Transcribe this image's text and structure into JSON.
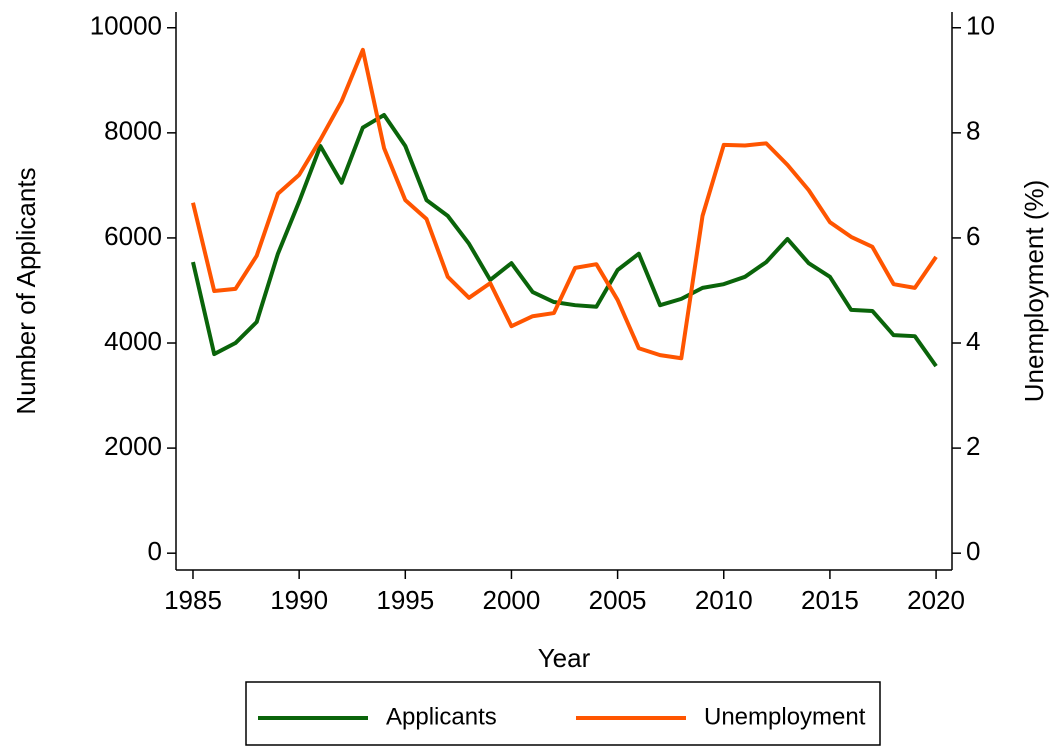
{
  "chart_data": {
    "type": "line",
    "xlabel": "Year",
    "ylabel": "Number of Applicants",
    "y2label": "Unemployment (%)",
    "x": [
      1985,
      1986,
      1987,
      1988,
      1989,
      1990,
      1991,
      1992,
      1993,
      1994,
      1995,
      1996,
      1997,
      1998,
      1999,
      2000,
      2001,
      2002,
      2003,
      2004,
      2005,
      2006,
      2007,
      2008,
      2009,
      2010,
      2011,
      2012,
      2013,
      2014,
      2015,
      2016,
      2017,
      2018,
      2019,
      2020
    ],
    "series": [
      {
        "name": "Applicants",
        "color": "#0a640a",
        "axis": "y",
        "values": [
          5540,
          3790,
          4000,
          4400,
          5700,
          6690,
          7750,
          7050,
          8100,
          8340,
          7750,
          6720,
          6420,
          5890,
          5200,
          5520,
          4970,
          4780,
          4720,
          4690,
          5390,
          5700,
          4720,
          4840,
          5050,
          5120,
          5260,
          5540,
          5980,
          5520,
          5260,
          4630,
          4610,
          4150,
          4130,
          3560
        ]
      },
      {
        "name": "Unemployment",
        "color": "#ff5500",
        "axis": "y2",
        "values": [
          6.67,
          4.99,
          5.03,
          5.66,
          6.84,
          7.2,
          7.87,
          8.6,
          9.58,
          7.71,
          6.72,
          6.36,
          5.26,
          4.86,
          5.14,
          4.32,
          4.51,
          4.57,
          5.43,
          5.5,
          4.82,
          3.9,
          3.77,
          3.71,
          6.42,
          7.77,
          7.76,
          7.8,
          7.39,
          6.91,
          6.3,
          6.02,
          5.83,
          5.12,
          5.05,
          5.64
        ]
      }
    ],
    "xlim": [
      1984.2,
      2020.75
    ],
    "xticks": [
      1985,
      1990,
      1995,
      2000,
      2005,
      2010,
      2015,
      2020
    ],
    "ylim": [
      -320,
      10300
    ],
    "yticks": [
      0,
      2000,
      4000,
      6000,
      8000,
      10000
    ],
    "y2lim": [
      -0.32,
      10.3
    ],
    "y2ticks": [
      0,
      2,
      4,
      6,
      8,
      10
    ],
    "legend": "bottom"
  }
}
